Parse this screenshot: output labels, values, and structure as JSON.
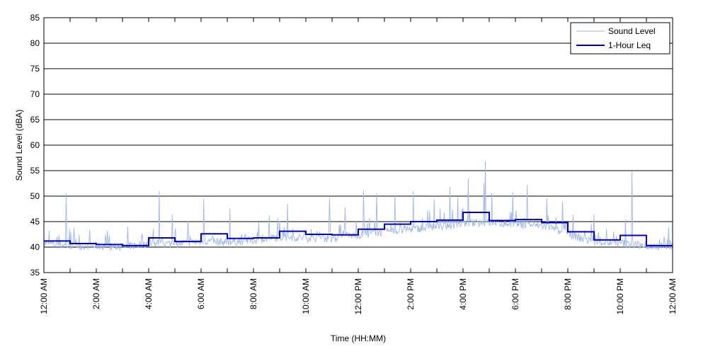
{
  "chart_data": {
    "type": "line",
    "title": "",
    "xlabel": "Time (HH:MM)",
    "ylabel": "Sound Level (dBA)",
    "ylim": [
      35,
      85
    ],
    "yticks": [
      35,
      40,
      45,
      50,
      55,
      60,
      65,
      70,
      75,
      80,
      85
    ],
    "xlim_hours": [
      0,
      24
    ],
    "xtick_hours": [
      0,
      2,
      4,
      6,
      8,
      10,
      12,
      14,
      16,
      18,
      20,
      22,
      24
    ],
    "xtick_labels": [
      "12:00 AM",
      "2:00 AM",
      "4:00 AM",
      "6:00 AM",
      "8:00 AM",
      "10:00 AM",
      "12:00 PM",
      "2:00 PM",
      "4:00 PM",
      "6:00 PM",
      "8:00 PM",
      "10:00 PM",
      "12:00 AM"
    ],
    "grid": "horizontal",
    "legend_position": "top-right",
    "colors": {
      "sound_level": "#9fb6ee",
      "leq": "#0000cc"
    },
    "series": [
      {
        "name": "Sound Level",
        "style": "thin-line",
        "hourly_baseline": [
          40.8,
          40.3,
          40.2,
          40.0,
          40.8,
          40.6,
          41.2,
          41.0,
          41.3,
          42.0,
          41.8,
          41.7,
          42.4,
          43.0,
          43.5,
          44.0,
          44.6,
          44.8,
          44.5,
          44.2,
          42.5,
          41.0,
          40.8,
          40.2
        ],
        "spikes": [
          {
            "hour": 0.85,
            "value": 50.5
          },
          {
            "hour": 1.15,
            "value": 43.8
          },
          {
            "hour": 1.75,
            "value": 43.4
          },
          {
            "hour": 2.5,
            "value": 42.2
          },
          {
            "hour": 3.2,
            "value": 44.0
          },
          {
            "hour": 4.4,
            "value": 51.0
          },
          {
            "hour": 4.9,
            "value": 46.5
          },
          {
            "hour": 5.5,
            "value": 45.2
          },
          {
            "hour": 6.1,
            "value": 49.5
          },
          {
            "hour": 7.1,
            "value": 47.6
          },
          {
            "hour": 8.6,
            "value": 46.2
          },
          {
            "hour": 9.3,
            "value": 48.5
          },
          {
            "hour": 10.9,
            "value": 49.5
          },
          {
            "hour": 11.5,
            "value": 47.8
          },
          {
            "hour": 12.2,
            "value": 51.2
          },
          {
            "hour": 12.7,
            "value": 50.6
          },
          {
            "hour": 13.4,
            "value": 50.2
          },
          {
            "hour": 14.1,
            "value": 51.0
          },
          {
            "hour": 14.9,
            "value": 49.4
          },
          {
            "hour": 15.5,
            "value": 51.8
          },
          {
            "hour": 15.8,
            "value": 49.8
          },
          {
            "hour": 16.2,
            "value": 53.5
          },
          {
            "hour": 16.8,
            "value": 52.6
          },
          {
            "hour": 16.85,
            "value": 56.8
          },
          {
            "hour": 17.1,
            "value": 50.6
          },
          {
            "hour": 17.9,
            "value": 50.8
          },
          {
            "hour": 18.45,
            "value": 52.2
          },
          {
            "hour": 19.2,
            "value": 49.6
          },
          {
            "hour": 19.8,
            "value": 48.9
          },
          {
            "hour": 20.2,
            "value": 46.4
          },
          {
            "hour": 21.0,
            "value": 46.4
          },
          {
            "hour": 22.45,
            "value": 54.8
          },
          {
            "hour": 22.2,
            "value": 45.4
          }
        ]
      },
      {
        "name": "1-Hour Leq",
        "style": "step",
        "hours": [
          0,
          1,
          2,
          3,
          4,
          5,
          6,
          7,
          8,
          9,
          10,
          11,
          12,
          13,
          14,
          15,
          16,
          17,
          18,
          19,
          20,
          21,
          22,
          23
        ],
        "values": [
          41.2,
          40.7,
          40.5,
          40.3,
          41.8,
          41.1,
          42.6,
          41.7,
          41.8,
          43.1,
          42.5,
          42.4,
          43.5,
          44.5,
          45.0,
          45.3,
          46.8,
          45.2,
          45.4,
          44.8,
          43.0,
          41.4,
          42.3,
          40.3
        ]
      }
    ]
  }
}
